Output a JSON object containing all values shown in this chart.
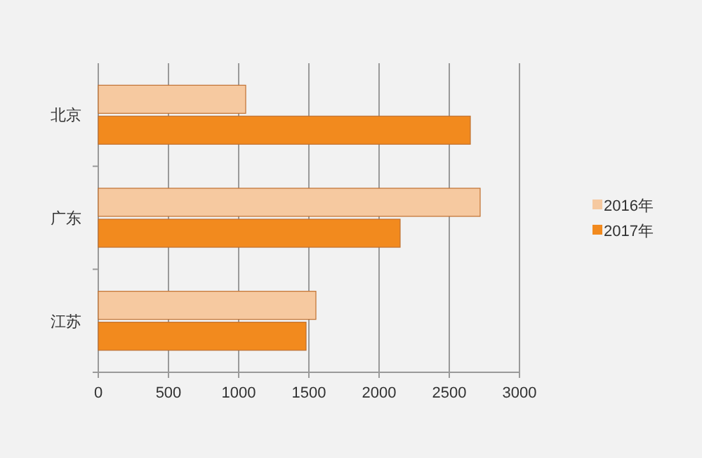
{
  "chart_data": {
    "type": "bar",
    "orientation": "horizontal",
    "categories": [
      "北京",
      "广东",
      "江苏"
    ],
    "series": [
      {
        "name": "2016年",
        "color": "#f6c9a0",
        "values": [
          1050,
          2720,
          1550
        ]
      },
      {
        "name": "2017年",
        "color": "#f28a1e",
        "values": [
          2650,
          2150,
          1480
        ]
      }
    ],
    "xlim": [
      0,
      3000
    ],
    "xticks": [
      0,
      500,
      1000,
      1500,
      2000,
      2500,
      3000
    ],
    "grid": "x",
    "legend": "right"
  }
}
